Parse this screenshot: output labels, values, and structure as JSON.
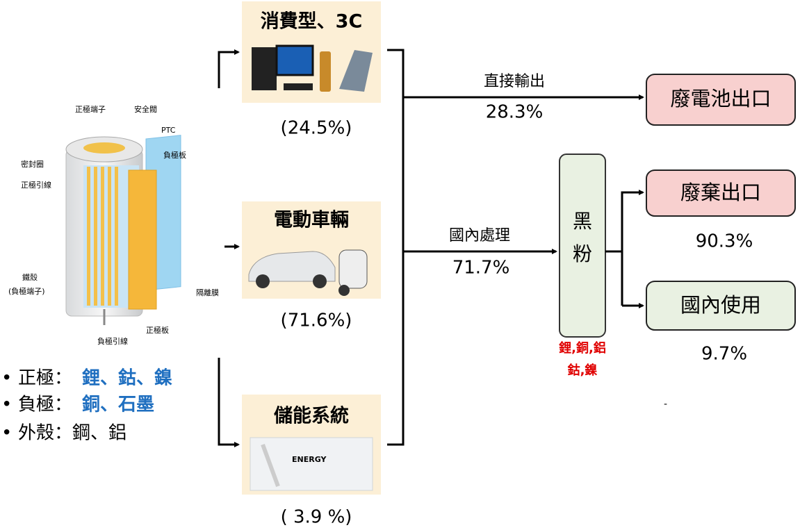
{
  "battery_labels": [
    "正極端子",
    "安全閥",
    "PTC",
    "負極板",
    "密封圈",
    "正極引線",
    "鐵殼",
    "(負極端子)",
    "隔離膜",
    "正極板",
    "負極引線"
  ],
  "materials": [
    {
      "label": "正極：",
      "items": "鋰、鈷、鎳"
    },
    {
      "label": "負極：",
      "items": "銅、石墨"
    },
    {
      "label": "外殼：鋼、鋁"
    }
  ],
  "sources": [
    {
      "title": "消費型、3C",
      "percent": "(24.5%)"
    },
    {
      "title": "電動車輛",
      "percent": "(71.6%)"
    },
    {
      "title": "儲能系統",
      "percent": "( 3.9 %)"
    }
  ],
  "flows": [
    {
      "label": "直接輸出",
      "percent": "28.3%"
    },
    {
      "label": "國內處理",
      "percent": "71.7%"
    }
  ],
  "black_powder": {
    "label": [
      "黑",
      "粉"
    ],
    "metals": [
      "鋰,銅,鋁",
      "鈷,鎳"
    ]
  },
  "outputs": [
    {
      "label": "廢電池出口"
    },
    {
      "label": "廢棄出口",
      "percent": "90.3%"
    },
    {
      "label": "國內使用",
      "percent": "9.7%"
    }
  ],
  "mark": "-"
}
